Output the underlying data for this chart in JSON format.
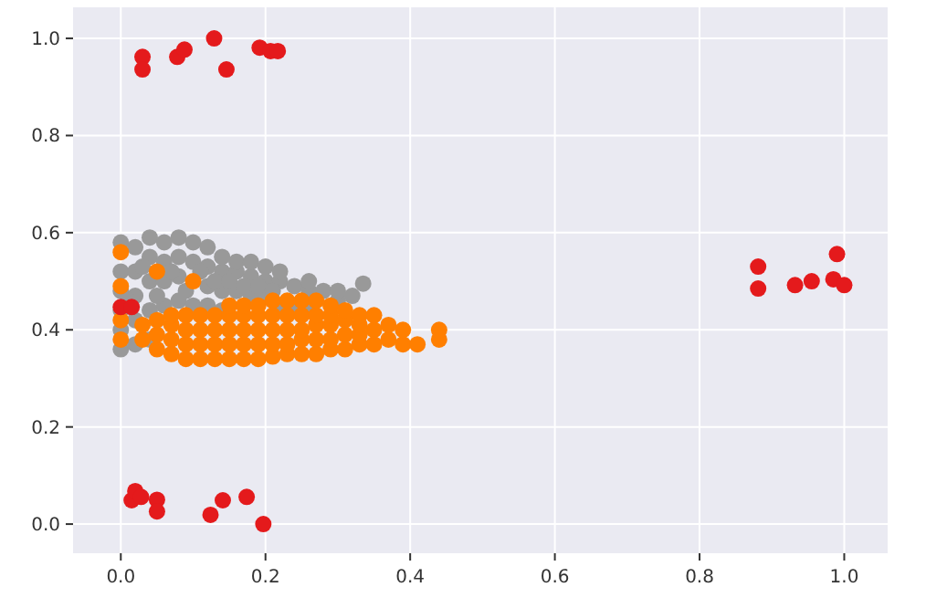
{
  "chart_data": {
    "type": "scatter",
    "xlim": [
      -0.066,
      1.06
    ],
    "ylim": [
      -0.06,
      1.064
    ],
    "xticks": [
      {
        "value": 0,
        "label": "0.0"
      },
      {
        "value": 0.2,
        "label": "0.2"
      },
      {
        "value": 0.4,
        "label": "0.4"
      },
      {
        "value": 0.6,
        "label": "0.6"
      },
      {
        "value": 0.8,
        "label": "0.8"
      },
      {
        "value": 1,
        "label": "1.0"
      }
    ],
    "yticks": [
      {
        "value": 0,
        "label": "0.0"
      },
      {
        "value": 0.2,
        "label": "0.2"
      },
      {
        "value": 0.4,
        "label": "0.4"
      },
      {
        "value": 0.6,
        "label": "0.6"
      },
      {
        "value": 0.8,
        "label": "0.8"
      },
      {
        "value": 1,
        "label": "1.0"
      }
    ],
    "grid": true,
    "marker": "circle",
    "series": [
      {
        "color": "#999999",
        "x": [
          0,
          0,
          0,
          0,
          0,
          0,
          0.02,
          0.02,
          0.02,
          0.02,
          0.02,
          0.04,
          0.04,
          0.04,
          0.04,
          0.04,
          0.06,
          0.06,
          0.06,
          0.06,
          0.08,
          0.08,
          0.08,
          0.08,
          0.1,
          0.1,
          0.1,
          0.12,
          0.12,
          0.12,
          0.12,
          0.14,
          0.14,
          0.14,
          0.14,
          0.16,
          0.16,
          0.16,
          0.18,
          0.18,
          0.18,
          0.2,
          0.2,
          0.2,
          0.22,
          0.22,
          0.22,
          0.24,
          0.24,
          0.26,
          0.26,
          0.26,
          0.28,
          0.3,
          0.3,
          0.32,
          0.335,
          0.01,
          0.03,
          0.05,
          0.07,
          0.09,
          0.11,
          0.13,
          0.15,
          0.17,
          0.19,
          0.21
        ],
        "values": [
          0.36,
          0.4,
          0.44,
          0.48,
          0.52,
          0.58,
          0.37,
          0.42,
          0.47,
          0.52,
          0.57,
          0.38,
          0.44,
          0.5,
          0.55,
          0.59,
          0.45,
          0.5,
          0.54,
          0.58,
          0.46,
          0.51,
          0.55,
          0.59,
          0.45,
          0.54,
          0.58,
          0.45,
          0.49,
          0.53,
          0.57,
          0.44,
          0.48,
          0.52,
          0.55,
          0.48,
          0.52,
          0.54,
          0.47,
          0.51,
          0.54,
          0.47,
          0.5,
          0.53,
          0.44,
          0.5,
          0.52,
          0.44,
          0.49,
          0.45,
          0.48,
          0.5,
          0.48,
          0.46,
          0.48,
          0.47,
          0.495,
          0.46,
          0.53,
          0.47,
          0.52,
          0.48,
          0.52,
          0.5,
          0.5,
          0.49,
          0.49,
          0.48
        ]
      },
      {
        "color": "#ff7f00",
        "x": [
          0,
          0,
          0,
          0,
          0.03,
          0.03,
          0.05,
          0.05,
          0.05,
          0.07,
          0.07,
          0.07,
          0.07,
          0.09,
          0.09,
          0.09,
          0.09,
          0.11,
          0.11,
          0.11,
          0.11,
          0.13,
          0.13,
          0.13,
          0.13,
          0.15,
          0.15,
          0.15,
          0.15,
          0.15,
          0.17,
          0.17,
          0.17,
          0.17,
          0.17,
          0.19,
          0.19,
          0.19,
          0.19,
          0.19,
          0.21,
          0.21,
          0.21,
          0.21,
          0.21,
          0.23,
          0.23,
          0.23,
          0.23,
          0.23,
          0.25,
          0.25,
          0.25,
          0.25,
          0.25,
          0.27,
          0.27,
          0.27,
          0.27,
          0.27,
          0.29,
          0.29,
          0.29,
          0.29,
          0.29,
          0.31,
          0.31,
          0.31,
          0.31,
          0.33,
          0.33,
          0.33,
          0.33,
          0.35,
          0.35,
          0.35,
          0.37,
          0.37,
          0.39,
          0.39,
          0.41,
          0.44,
          0.44,
          0.05,
          0.1
        ],
        "values": [
          0.38,
          0.42,
          0.56,
          0.49,
          0.38,
          0.41,
          0.36,
          0.39,
          0.42,
          0.35,
          0.38,
          0.41,
          0.43,
          0.34,
          0.37,
          0.4,
          0.43,
          0.34,
          0.37,
          0.4,
          0.43,
          0.34,
          0.37,
          0.4,
          0.43,
          0.34,
          0.37,
          0.4,
          0.43,
          0.45,
          0.34,
          0.37,
          0.4,
          0.43,
          0.45,
          0.34,
          0.37,
          0.4,
          0.43,
          0.45,
          0.345,
          0.37,
          0.4,
          0.43,
          0.46,
          0.35,
          0.37,
          0.4,
          0.43,
          0.46,
          0.35,
          0.38,
          0.4,
          0.43,
          0.46,
          0.35,
          0.38,
          0.41,
          0.43,
          0.46,
          0.36,
          0.38,
          0.41,
          0.43,
          0.45,
          0.36,
          0.39,
          0.42,
          0.44,
          0.37,
          0.39,
          0.41,
          0.43,
          0.37,
          0.4,
          0.43,
          0.38,
          0.41,
          0.37,
          0.4,
          0.37,
          0.38,
          0.4,
          0.52,
          0.5
        ]
      },
      {
        "color": "#e41a1c",
        "x": [
          0.03,
          0.03,
          0.078,
          0.088,
          0.129,
          0.146,
          0.192,
          0.207,
          0.217,
          0.015,
          0.02,
          0.028,
          0.05,
          0.05,
          0.124,
          0.141,
          0.174,
          0.197,
          0.881,
          0.881,
          0.932,
          0.955,
          0.985,
          0.99,
          1.0,
          0,
          0.015
        ],
        "values": [
          0.962,
          0.936,
          0.962,
          0.977,
          1.0,
          0.936,
          0.981,
          0.974,
          0.974,
          0.049,
          0.068,
          0.056,
          0.05,
          0.026,
          0.019,
          0.049,
          0.056,
          0.0,
          0.53,
          0.485,
          0.492,
          0.5,
          0.504,
          0.556,
          0.492,
          0.447,
          0.447
        ]
      }
    ]
  }
}
